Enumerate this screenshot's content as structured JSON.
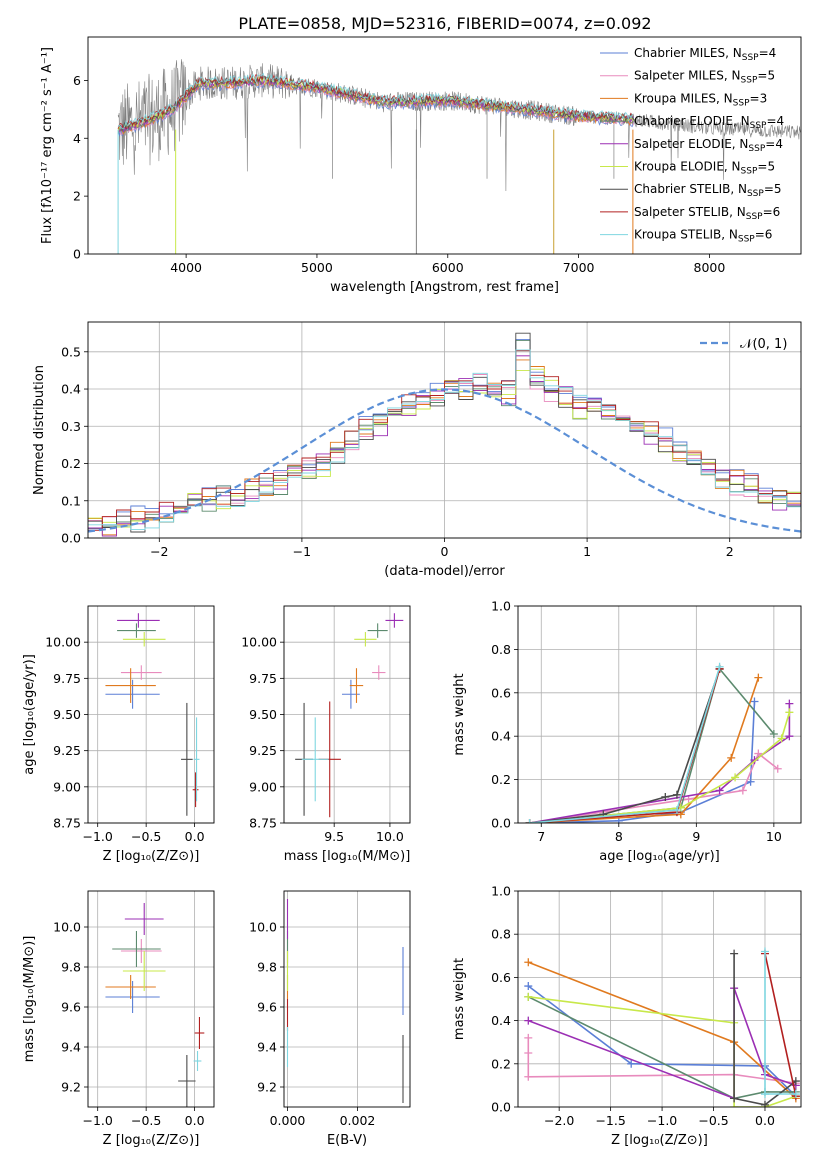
{
  "figure": {
    "title": "PLATE=0858, MJD=52316, FIBERID=0074, z=0.092"
  },
  "styles": {
    "Chabrier MILES": "#5b7fd6",
    "Salpeter MILES": "#e88bbd",
    "Kroupa MILES": "#e07a1f",
    "Chabrier ELODIE": "#5c8a6e",
    "Salpeter ELODIE": "#9b2fb4",
    "Kroupa ELODIE": "#c8e84a",
    "Chabrier STELIB": "#4a4a4a",
    "Salpeter STELIB": "#b22020",
    "Kroupa STELIB": "#7fd6e0",
    "data": "#808080",
    "normal": "#5b8fd6",
    "grid": "#b0b0b0"
  },
  "chart_data": [
    {
      "id": "spectrum",
      "type": "line",
      "title": "",
      "xlabel": "wavelength [Angstrom, rest frame]",
      "ylabel": "Flux [fλ10⁻¹⁷ erg cm⁻² s⁻¹ A⁻¹]",
      "xlim": [
        3250,
        8700
      ],
      "ylim": [
        0,
        7.5
      ],
      "xticks": [
        4000,
        5000,
        6000,
        7000,
        8000
      ],
      "yticks": [
        0,
        2,
        4,
        6
      ],
      "grid": false,
      "legend_position": "upper-right",
      "continuum": {
        "x": [
          3500,
          3700,
          3900,
          4100,
          4300,
          4600,
          5000,
          5500,
          6000,
          6500,
          7000,
          7400,
          8000,
          8700
        ],
        "y": [
          4.3,
          4.6,
          5.0,
          5.9,
          5.9,
          6.0,
          5.75,
          5.25,
          5.3,
          5.05,
          4.75,
          4.65,
          4.35,
          4.2
        ]
      },
      "legend": [
        {
          "label": "Chabrier MILES, N",
          "sub": "SSP",
          "suffix": "=4",
          "style": "Chabrier MILES"
        },
        {
          "label": "Salpeter MILES, N",
          "sub": "SSP",
          "suffix": "=5",
          "style": "Salpeter MILES"
        },
        {
          "label": "Kroupa MILES, N",
          "sub": "SSP",
          "suffix": "=3",
          "style": "Kroupa MILES"
        },
        {
          "label": "Chabrier ELODIE, N",
          "sub": "SSP",
          "suffix": "=4",
          "style": "Chabrier ELODIE"
        },
        {
          "label": "Salpeter ELODIE, N",
          "sub": "SSP",
          "suffix": "=4",
          "style": "Salpeter ELODIE"
        },
        {
          "label": "Kroupa ELODIE, N",
          "sub": "SSP",
          "suffix": "=5",
          "style": "Kroupa ELODIE"
        },
        {
          "label": "Chabrier STELIB, N",
          "sub": "SSP",
          "suffix": "=5",
          "style": "Chabrier STELIB"
        },
        {
          "label": "Salpeter STELIB, N",
          "sub": "SSP",
          "suffix": "=6",
          "style": "Salpeter STELIB"
        },
        {
          "label": "Kroupa STELIB, N",
          "sub": "SSP",
          "suffix": "=6",
          "style": "Kroupa STELIB"
        }
      ]
    },
    {
      "id": "residuals",
      "type": "line",
      "title": "",
      "xlabel": "(data-model)/error",
      "ylabel": "Normed distribution",
      "xlim": [
        -2.5,
        2.5
      ],
      "ylim": [
        0,
        0.58
      ],
      "xticks": [
        -2,
        -1,
        0,
        1,
        2
      ],
      "yticks": [
        0.0,
        0.1,
        0.2,
        0.3,
        0.4,
        0.5
      ],
      "grid": true,
      "legend_position": "upper-right",
      "legend": [
        {
          "label": "𝒩(0, 1)",
          "style": "normal"
        }
      ],
      "bin_width": 0.1,
      "bin_start": -2.5,
      "heights": [
        0.02,
        0.03,
        0.045,
        0.05,
        0.055,
        0.06,
        0.07,
        0.085,
        0.1,
        0.11,
        0.12,
        0.13,
        0.14,
        0.15,
        0.16,
        0.18,
        0.2,
        0.23,
        0.26,
        0.29,
        0.31,
        0.33,
        0.35,
        0.37,
        0.38,
        0.39,
        0.4,
        0.41,
        0.38,
        0.39,
        0.5,
        0.43,
        0.4,
        0.38,
        0.35,
        0.34,
        0.33,
        0.32,
        0.3,
        0.28,
        0.26,
        0.23,
        0.2,
        0.18,
        0.16,
        0.15,
        0.14,
        0.12,
        0.11,
        0.09,
        0.08,
        0.07,
        0.065,
        0.06,
        0.055,
        0.05,
        0.045,
        0.04,
        0.035,
        0.03
      ]
    },
    {
      "id": "age-vs-Z",
      "type": "scatter",
      "xlabel": "Z [log₁₀(Z/Z⊙)]",
      "ylabel": "age  [log₁₀(age/yr)]",
      "xlim": [
        -1.1,
        0.2
      ],
      "ylim": [
        8.75,
        10.25
      ],
      "xticks": [
        -1.0,
        -0.5,
        0.0
      ],
      "yticks": [
        8.75,
        9.0,
        9.25,
        9.5,
        9.75,
        10.0
      ],
      "grid": true,
      "points": [
        {
          "style": "Chabrier MILES",
          "x": -0.64,
          "xerr": 0.28,
          "y": 9.64,
          "yerr": 0.1
        },
        {
          "style": "Salpeter MILES",
          "x": -0.55,
          "xerr": 0.21,
          "y": 9.79,
          "yerr": 0.05
        },
        {
          "style": "Kroupa MILES",
          "x": -0.66,
          "xerr": 0.26,
          "y": 9.7,
          "yerr": 0.12
        },
        {
          "style": "Chabrier ELODIE",
          "x": -0.6,
          "xerr": 0.2,
          "y": 10.08,
          "yerr": 0.05
        },
        {
          "style": "Salpeter ELODIE",
          "x": -0.58,
          "xerr": 0.22,
          "y": 10.15,
          "yerr": 0.05
        },
        {
          "style": "Kroupa ELODIE",
          "x": -0.52,
          "xerr": 0.22,
          "y": 10.02,
          "yerr": 0.05
        },
        {
          "style": "Chabrier STELIB",
          "x": -0.08,
          "xerr": 0.06,
          "y": 9.19,
          "yerr": 0.39
        },
        {
          "style": "Salpeter STELIB",
          "x": 0.01,
          "xerr": 0.03,
          "y": 8.98,
          "yerr": 0.12
        },
        {
          "style": "Kroupa STELIB",
          "x": 0.02,
          "xerr": 0.03,
          "y": 9.19,
          "yerr": 0.29
        }
      ]
    },
    {
      "id": "age-vs-mass",
      "type": "scatter",
      "xlabel": "mass [log₁₀(M/M⊙)]",
      "ylabel": "",
      "xlim": [
        9.05,
        10.18
      ],
      "ylim": [
        8.75,
        10.25
      ],
      "xticks": [
        9.5,
        10.0
      ],
      "yticks": [
        8.75,
        9.0,
        9.25,
        9.5,
        9.75,
        10.0
      ],
      "grid": true,
      "points": [
        {
          "style": "Chabrier MILES",
          "x": 9.65,
          "xerr": 0.08,
          "y": 9.64,
          "yerr": 0.1
        },
        {
          "style": "Salpeter MILES",
          "x": 9.9,
          "xerr": 0.06,
          "y": 9.79,
          "yerr": 0.05
        },
        {
          "style": "Kroupa MILES",
          "x": 9.7,
          "xerr": 0.06,
          "y": 9.7,
          "yerr": 0.12
        },
        {
          "style": "Chabrier ELODIE",
          "x": 9.89,
          "xerr": 0.09,
          "y": 10.08,
          "yerr": 0.05
        },
        {
          "style": "Salpeter ELODIE",
          "x": 10.04,
          "xerr": 0.08,
          "y": 10.15,
          "yerr": 0.05
        },
        {
          "style": "Kroupa ELODIE",
          "x": 9.78,
          "xerr": 0.1,
          "y": 10.02,
          "yerr": 0.05
        },
        {
          "style": "Chabrier STELIB",
          "x": 9.23,
          "xerr": 0.08,
          "y": 9.19,
          "yerr": 0.39
        },
        {
          "style": "Salpeter STELIB",
          "x": 9.46,
          "xerr": 0.1,
          "y": 9.19,
          "yerr": 0.4
        },
        {
          "style": "Kroupa STELIB",
          "x": 9.33,
          "xerr": 0.12,
          "y": 9.19,
          "yerr": 0.29
        }
      ]
    },
    {
      "id": "weight-vs-age",
      "type": "line",
      "xlabel": "age  [log₁₀(age/yr)]",
      "ylabel": "mass weight",
      "xlim": [
        6.7,
        10.35
      ],
      "ylim": [
        0,
        1.0
      ],
      "xticks": [
        7,
        8,
        9,
        10
      ],
      "yticks": [
        0.0,
        0.2,
        0.4,
        0.6,
        0.8,
        1.0
      ],
      "grid": true,
      "series": [
        {
          "style": "Chabrier MILES",
          "x": [
            6.85,
            8.0,
            8.8,
            9.7,
            9.75
          ],
          "y": [
            0.0,
            0.01,
            0.05,
            0.19,
            0.56
          ]
        },
        {
          "style": "Salpeter MILES",
          "x": [
            6.85,
            8.9,
            9.6,
            9.8,
            10.05
          ],
          "y": [
            0.0,
            0.11,
            0.15,
            0.32,
            0.25
          ]
        },
        {
          "style": "Kroupa MILES",
          "x": [
            6.85,
            8.8,
            9.45,
            9.8
          ],
          "y": [
            0.0,
            0.04,
            0.3,
            0.67
          ]
        },
        {
          "style": "Chabrier ELODIE",
          "x": [
            6.85,
            8.8,
            9.3,
            10.0
          ],
          "y": [
            0.0,
            0.07,
            0.71,
            0.41
          ]
        },
        {
          "style": "Salpeter ELODIE",
          "x": [
            6.85,
            9.3,
            9.75,
            10.2,
            10.2
          ],
          "y": [
            0.0,
            0.15,
            0.29,
            0.4,
            0.55
          ]
        },
        {
          "style": "Kroupa ELODIE",
          "x": [
            6.85,
            8.8,
            9.5,
            10.1,
            10.2
          ],
          "y": [
            0.0,
            0.07,
            0.21,
            0.39,
            0.51
          ]
        },
        {
          "style": "Chabrier STELIB",
          "x": [
            6.85,
            7.8,
            8.6,
            8.75,
            9.3
          ],
          "y": [
            0.0,
            0.04,
            0.12,
            0.13,
            0.71
          ]
        },
        {
          "style": "Salpeter STELIB",
          "x": [
            6.85,
            8.75,
            9.3
          ],
          "y": [
            0.0,
            0.05,
            0.71
          ]
        },
        {
          "style": "Kroupa STELIB",
          "x": [
            6.85,
            8.75,
            9.3
          ],
          "y": [
            0.0,
            0.06,
            0.72
          ]
        }
      ]
    },
    {
      "id": "mass-vs-Z",
      "type": "scatter",
      "xlabel": "Z [log₁₀(Z/Z⊙)]",
      "ylabel": "mass [log₁₀(M/M⊙)]",
      "xlim": [
        -1.1,
        0.2
      ],
      "ylim": [
        9.1,
        10.18
      ],
      "xticks": [
        -1.0,
        -0.5,
        0.0
      ],
      "yticks": [
        9.2,
        9.4,
        9.6,
        9.8,
        10.0
      ],
      "grid": true,
      "points": [
        {
          "style": "Chabrier MILES",
          "x": -0.64,
          "xerr": 0.28,
          "y": 9.65,
          "yerr": 0.08
        },
        {
          "style": "Salpeter MILES",
          "x": -0.55,
          "xerr": 0.21,
          "y": 9.88,
          "yerr": 0.06
        },
        {
          "style": "Kroupa MILES",
          "x": -0.66,
          "xerr": 0.26,
          "y": 9.7,
          "yerr": 0.06
        },
        {
          "style": "Chabrier ELODIE",
          "x": -0.6,
          "xerr": 0.25,
          "y": 9.89,
          "yerr": 0.09
        },
        {
          "style": "Salpeter ELODIE",
          "x": -0.52,
          "xerr": 0.2,
          "y": 10.04,
          "yerr": 0.08
        },
        {
          "style": "Kroupa ELODIE",
          "x": -0.52,
          "xerr": 0.22,
          "y": 9.78,
          "yerr": 0.1
        },
        {
          "style": "Chabrier STELIB",
          "x": -0.08,
          "xerr": 0.09,
          "y": 9.23,
          "yerr": 0.13
        },
        {
          "style": "Salpeter STELIB",
          "x": 0.05,
          "xerr": 0.05,
          "y": 9.47,
          "yerr": 0.08
        },
        {
          "style": "Kroupa STELIB",
          "x": 0.03,
          "xerr": 0.04,
          "y": 9.33,
          "yerr": 0.05
        }
      ]
    },
    {
      "id": "mass-vs-ebv",
      "type": "scatter",
      "xlabel": "E(B-V)",
      "ylabel": "",
      "xlim": [
        -0.0001,
        0.0035
      ],
      "ylim": [
        9.1,
        10.18
      ],
      "xticks": [
        0.0,
        0.002
      ],
      "xtick_labels": [
        "0.000",
        "0.002"
      ],
      "yticks": [
        9.2,
        9.4,
        9.6,
        9.8,
        10.0
      ],
      "grid": true,
      "points": [
        {
          "style": "Chabrier MILES",
          "x": 0.0033,
          "xerr": 0,
          "y": 9.73,
          "yerr": 0.17
        },
        {
          "style": "Salpeter MILES",
          "x": 0.0,
          "xerr": 0,
          "y": 9.88,
          "yerr": 0.06
        },
        {
          "style": "Kroupa MILES",
          "x": 0.0,
          "xerr": 0,
          "y": 9.7,
          "yerr": 0.06
        },
        {
          "style": "Chabrier ELODIE",
          "x": 0.0,
          "xerr": 0,
          "y": 9.89,
          "yerr": 0.09
        },
        {
          "style": "Salpeter ELODIE",
          "x": 0.0,
          "xerr": 0,
          "y": 10.04,
          "yerr": 0.1
        },
        {
          "style": "Kroupa ELODIE",
          "x": 0.0,
          "xerr": 0,
          "y": 9.78,
          "yerr": 0.1
        },
        {
          "style": "Chabrier STELIB",
          "x": 0.0033,
          "xerr": 0,
          "y": 9.29,
          "yerr": 0.17
        },
        {
          "style": "Salpeter STELIB",
          "x": 0.0,
          "xerr": 0,
          "y": 9.56,
          "yerr": 0.08
        },
        {
          "style": "Kroupa STELIB",
          "x": 0.0,
          "xerr": 0,
          "y": 9.4,
          "yerr": 0.1
        }
      ]
    },
    {
      "id": "weight-vs-Z",
      "type": "line",
      "xlabel": "Z [log₁₀(Z/Z⊙)]",
      "ylabel": "mass weight",
      "xlim": [
        -2.4,
        0.35
      ],
      "ylim": [
        0,
        1.0
      ],
      "xticks": [
        -2.0,
        -1.5,
        -1.0,
        -0.5,
        0.0
      ],
      "yticks": [
        0.0,
        0.2,
        0.4,
        0.6,
        0.8,
        1.0
      ],
      "grid": true,
      "series": [
        {
          "style": "Chabrier MILES",
          "x": [
            -2.3,
            -1.3,
            0.0,
            0.3
          ],
          "y": [
            0.56,
            0.2,
            0.19,
            0.05
          ]
        },
        {
          "style": "Salpeter MILES",
          "x": [
            -2.3,
            -2.3,
            -2.3,
            -0.3,
            0.3
          ],
          "y": [
            0.32,
            0.25,
            0.14,
            0.15,
            0.11
          ]
        },
        {
          "style": "Kroupa MILES",
          "x": [
            -2.3,
            -0.3,
            0.3
          ],
          "y": [
            0.67,
            0.3,
            0.04
          ]
        },
        {
          "style": "Chabrier ELODIE",
          "x": [
            -2.3,
            -0.3,
            0.0,
            0.3
          ],
          "y": [
            0.51,
            0.04,
            0.07,
            0.07
          ]
        },
        {
          "style": "Salpeter ELODIE",
          "x": [
            -2.3,
            -0.3,
            -0.3,
            0.0,
            0.3
          ],
          "y": [
            0.4,
            0.04,
            0.55,
            0.15,
            0.1
          ]
        },
        {
          "style": "Kroupa ELODIE",
          "x": [
            -2.3,
            -0.3,
            -0.3,
            0.0,
            0.3
          ],
          "y": [
            0.51,
            0.39,
            0.0,
            0.0,
            0.05
          ]
        },
        {
          "style": "Chabrier STELIB",
          "x": [
            -0.3,
            -0.3,
            0.0,
            0.3
          ],
          "y": [
            0.71,
            0.04,
            0.01,
            0.12
          ]
        },
        {
          "style": "Salpeter STELIB",
          "x": [
            0.0,
            0.3
          ],
          "y": [
            0.71,
            0.05
          ]
        },
        {
          "style": "Kroupa STELIB",
          "x": [
            0.0,
            0.0,
            0.3
          ],
          "y": [
            0.72,
            0.06,
            0.06
          ]
        }
      ]
    }
  ]
}
